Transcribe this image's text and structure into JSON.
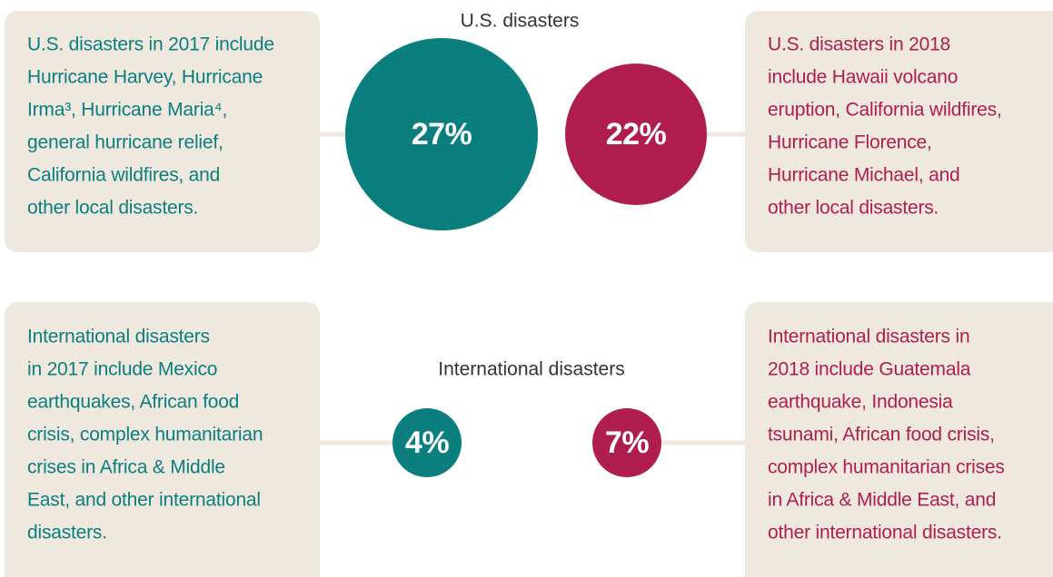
{
  "us": {
    "title": "U.S. disasters",
    "left": {
      "label": "27%",
      "lines": [
        "U.S. disasters in 2017 include",
        "Hurricane Harvey, Hurricane",
        "Irma³, Hurricane Maria⁴,",
        "general hurricane relief,",
        "California wildfires, and",
        "other local disasters."
      ]
    },
    "right": {
      "label": "22%",
      "lines": [
        "U.S. disasters in 2018",
        "include Hawaii volcano",
        "eruption, California wildfires,",
        "Hurricane Florence,",
        "Hurricane Michael, and",
        "other local disasters."
      ]
    }
  },
  "international": {
    "title": "International disasters",
    "left": {
      "label": "4%",
      "lines": [
        "International disasters",
        "in 2017 include Mexico",
        "earthquakes, African food",
        "crisis, complex humanitarian",
        "crises in Africa & Middle",
        "East, and other international",
        "disasters."
      ]
    },
    "right": {
      "label": "7%",
      "lines": [
        "International disasters in",
        "2018 include Guatemala",
        "earthquake, Indonesia",
        "tsunami, African food crisis,",
        "complex humanitarian crises",
        "in Africa & Middle East, and",
        "other international disasters."
      ]
    }
  }
}
